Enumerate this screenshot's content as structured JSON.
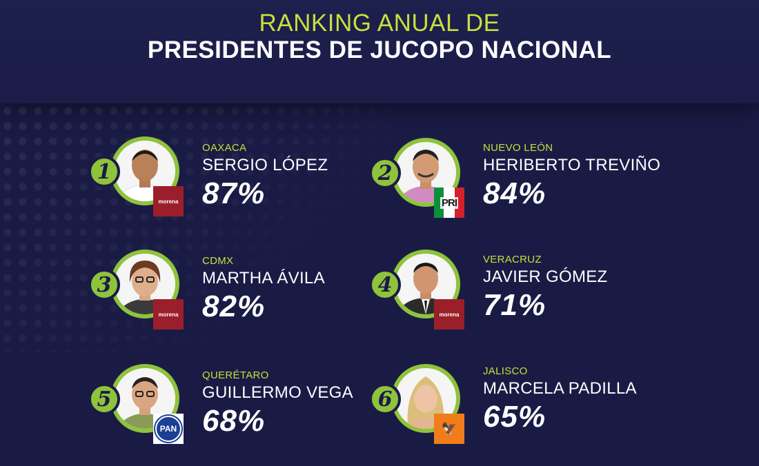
{
  "header": {
    "title_top": "RANKING ANUAL DE",
    "title_main": "PRESIDENTES DE JUCOPO NACIONAL"
  },
  "rankings": [
    {
      "rank": "1",
      "state": "OAXACA",
      "name": "SERGIO LÓPEZ",
      "percent": "87%",
      "party": "morena"
    },
    {
      "rank": "2",
      "state": "NUEVO LEÓN",
      "name": "HERIBERTO TREVIÑO",
      "percent": "84%",
      "party": "PRI"
    },
    {
      "rank": "3",
      "state": "CDMX",
      "name": "MARTHA ÁVILA",
      "percent": "82%",
      "party": "morena"
    },
    {
      "rank": "4",
      "state": "VERACRUZ",
      "name": "JAVIER GÓMEZ",
      "percent": "71%",
      "party": "morena"
    },
    {
      "rank": "5",
      "state": "QUERÉTARO",
      "name": "GUILLERMO VEGA",
      "percent": "68%",
      "party": "PAN"
    },
    {
      "rank": "6",
      "state": "JALISCO",
      "name": "MARCELA PADILLA",
      "percent": "65%",
      "party": "movimiento-ciudadano"
    }
  ],
  "colors": {
    "background": "#1a1b45",
    "accent": "#c6e03b",
    "ring": "#8fc33c"
  }
}
